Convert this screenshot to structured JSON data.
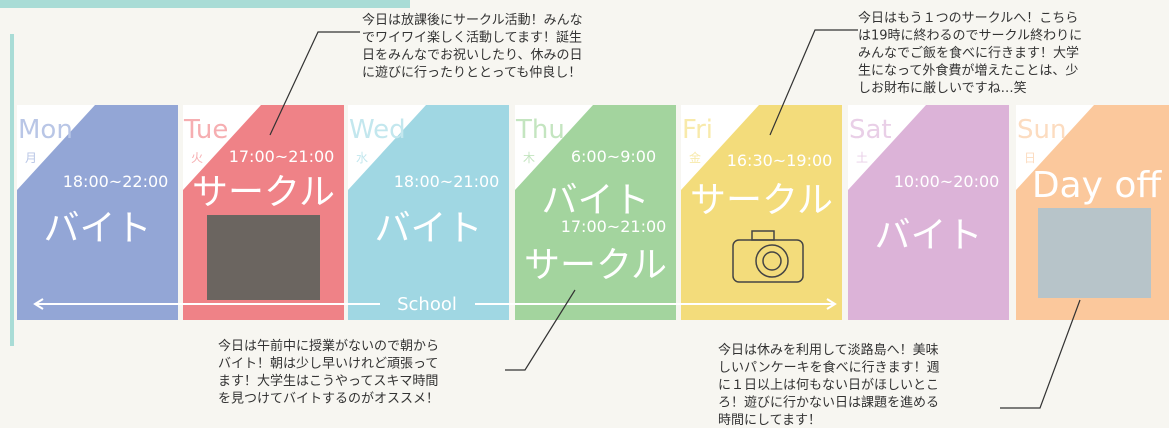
{
  "days": [
    {
      "name": "Mon",
      "kanji": "月",
      "items": [
        {
          "time": "18:00~22:00",
          "activity": "バイト"
        }
      ]
    },
    {
      "name": "Tue",
      "kanji": "火",
      "items": [
        {
          "time": "17:00~21:00",
          "activity": "サークル"
        }
      ]
    },
    {
      "name": "Wed",
      "kanji": "水",
      "items": [
        {
          "time": "18:00~21:00",
          "activity": "バイト"
        }
      ]
    },
    {
      "name": "Thu",
      "kanji": "木",
      "items": [
        {
          "time": "6:00~9:00",
          "activity": "バイト"
        },
        {
          "time": "17:00~21:00",
          "activity": "サークル"
        }
      ]
    },
    {
      "name": "Fri",
      "kanji": "金",
      "items": [
        {
          "time": "16:30~19:00",
          "activity": "サークル"
        }
      ]
    },
    {
      "name": "Sat",
      "kanji": "土",
      "items": [
        {
          "time": "10:00~20:00",
          "activity": "バイト"
        }
      ]
    },
    {
      "name": "Sun",
      "kanji": "日",
      "items": [
        {
          "activity": "Day off"
        }
      ]
    }
  ],
  "school_label": "School",
  "notes": [
    [
      "今日は放課後にサークル活動！みんな",
      "でワイワイ楽しく活動してます！誕生",
      "日をみんなでお祝いしたり、休みの日",
      "に遊びに行ったりととっても仲良し！"
    ],
    [
      "今日はもう１つのサークルへ！こちら",
      "は19時に終わるのでサークル終わりに",
      "みんなでご飯を食べに行きます！大学",
      "生になって外食費が増えたことは、少",
      "しお財布に厳しいですね…笑"
    ],
    [
      "今日は午前中に授業がないので朝から",
      "バイト！朝は少し早いけれど頑張って",
      "ます！大学生はこうやってスキマ時間",
      "を見つけてバイトするのがオススメ！"
    ],
    [
      "今日は休みを利用して淡路島へ！美味",
      "しいパンケーキを食べに行きます！週",
      "に１日以上は何もない日がほしいとこ",
      "ろ！遊びに行かない日は課題を進める",
      "時間にしてます！"
    ]
  ]
}
